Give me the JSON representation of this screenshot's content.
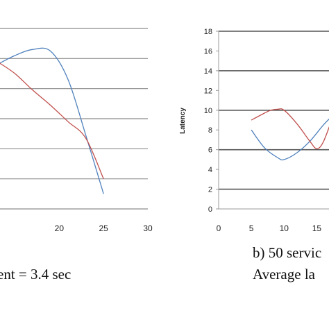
{
  "chart_data": [
    {
      "type": "line",
      "panel": "left",
      "x_ticks": [
        "20",
        "25",
        "30"
      ],
      "xlim": [
        13,
        30
      ],
      "ylim": [
        0,
        12
      ],
      "grid": true,
      "series": [
        {
          "color": "#4F81BD",
          "x": [
            13,
            15,
            17,
            19,
            21,
            23,
            25
          ],
          "y": [
            9.6,
            10.2,
            10.6,
            10.5,
            8.6,
            4.9,
            1.0
          ]
        },
        {
          "color": "#C0504D",
          "x": [
            13,
            15,
            17,
            19,
            21,
            23,
            25
          ],
          "y": [
            9.8,
            9.0,
            7.9,
            6.9,
            5.8,
            4.7,
            2.0
          ]
        }
      ],
      "caption": "ent = 3.4 sec"
    },
    {
      "type": "line",
      "panel": "right",
      "ylabel": "Latency",
      "y_ticks": [
        "0",
        "2",
        "4",
        "6",
        "8",
        "10",
        "12",
        "14",
        "16",
        "18"
      ],
      "x_ticks": [
        "0",
        "5",
        "10",
        "15"
      ],
      "xlim": [
        0,
        17.5
      ],
      "ylim": [
        0,
        18
      ],
      "grid": true,
      "series": [
        {
          "color": "#4F81BD",
          "x": [
            5,
            7,
            9,
            10,
            12,
            14,
            16,
            17.5
          ],
          "y": [
            8,
            6.2,
            5.2,
            5.0,
            5.7,
            6.9,
            8.5,
            9.5
          ]
        },
        {
          "color": "#C0504D",
          "x": [
            5,
            7,
            8,
            9,
            10,
            12,
            14,
            15,
            16,
            17.5
          ],
          "y": [
            9,
            9.7,
            10.0,
            10.1,
            10.0,
            8.6,
            6.8,
            6.1,
            6.8,
            9.4
          ]
        }
      ],
      "caption_lines": [
        "b) 50 servic",
        "Average la"
      ]
    }
  ]
}
